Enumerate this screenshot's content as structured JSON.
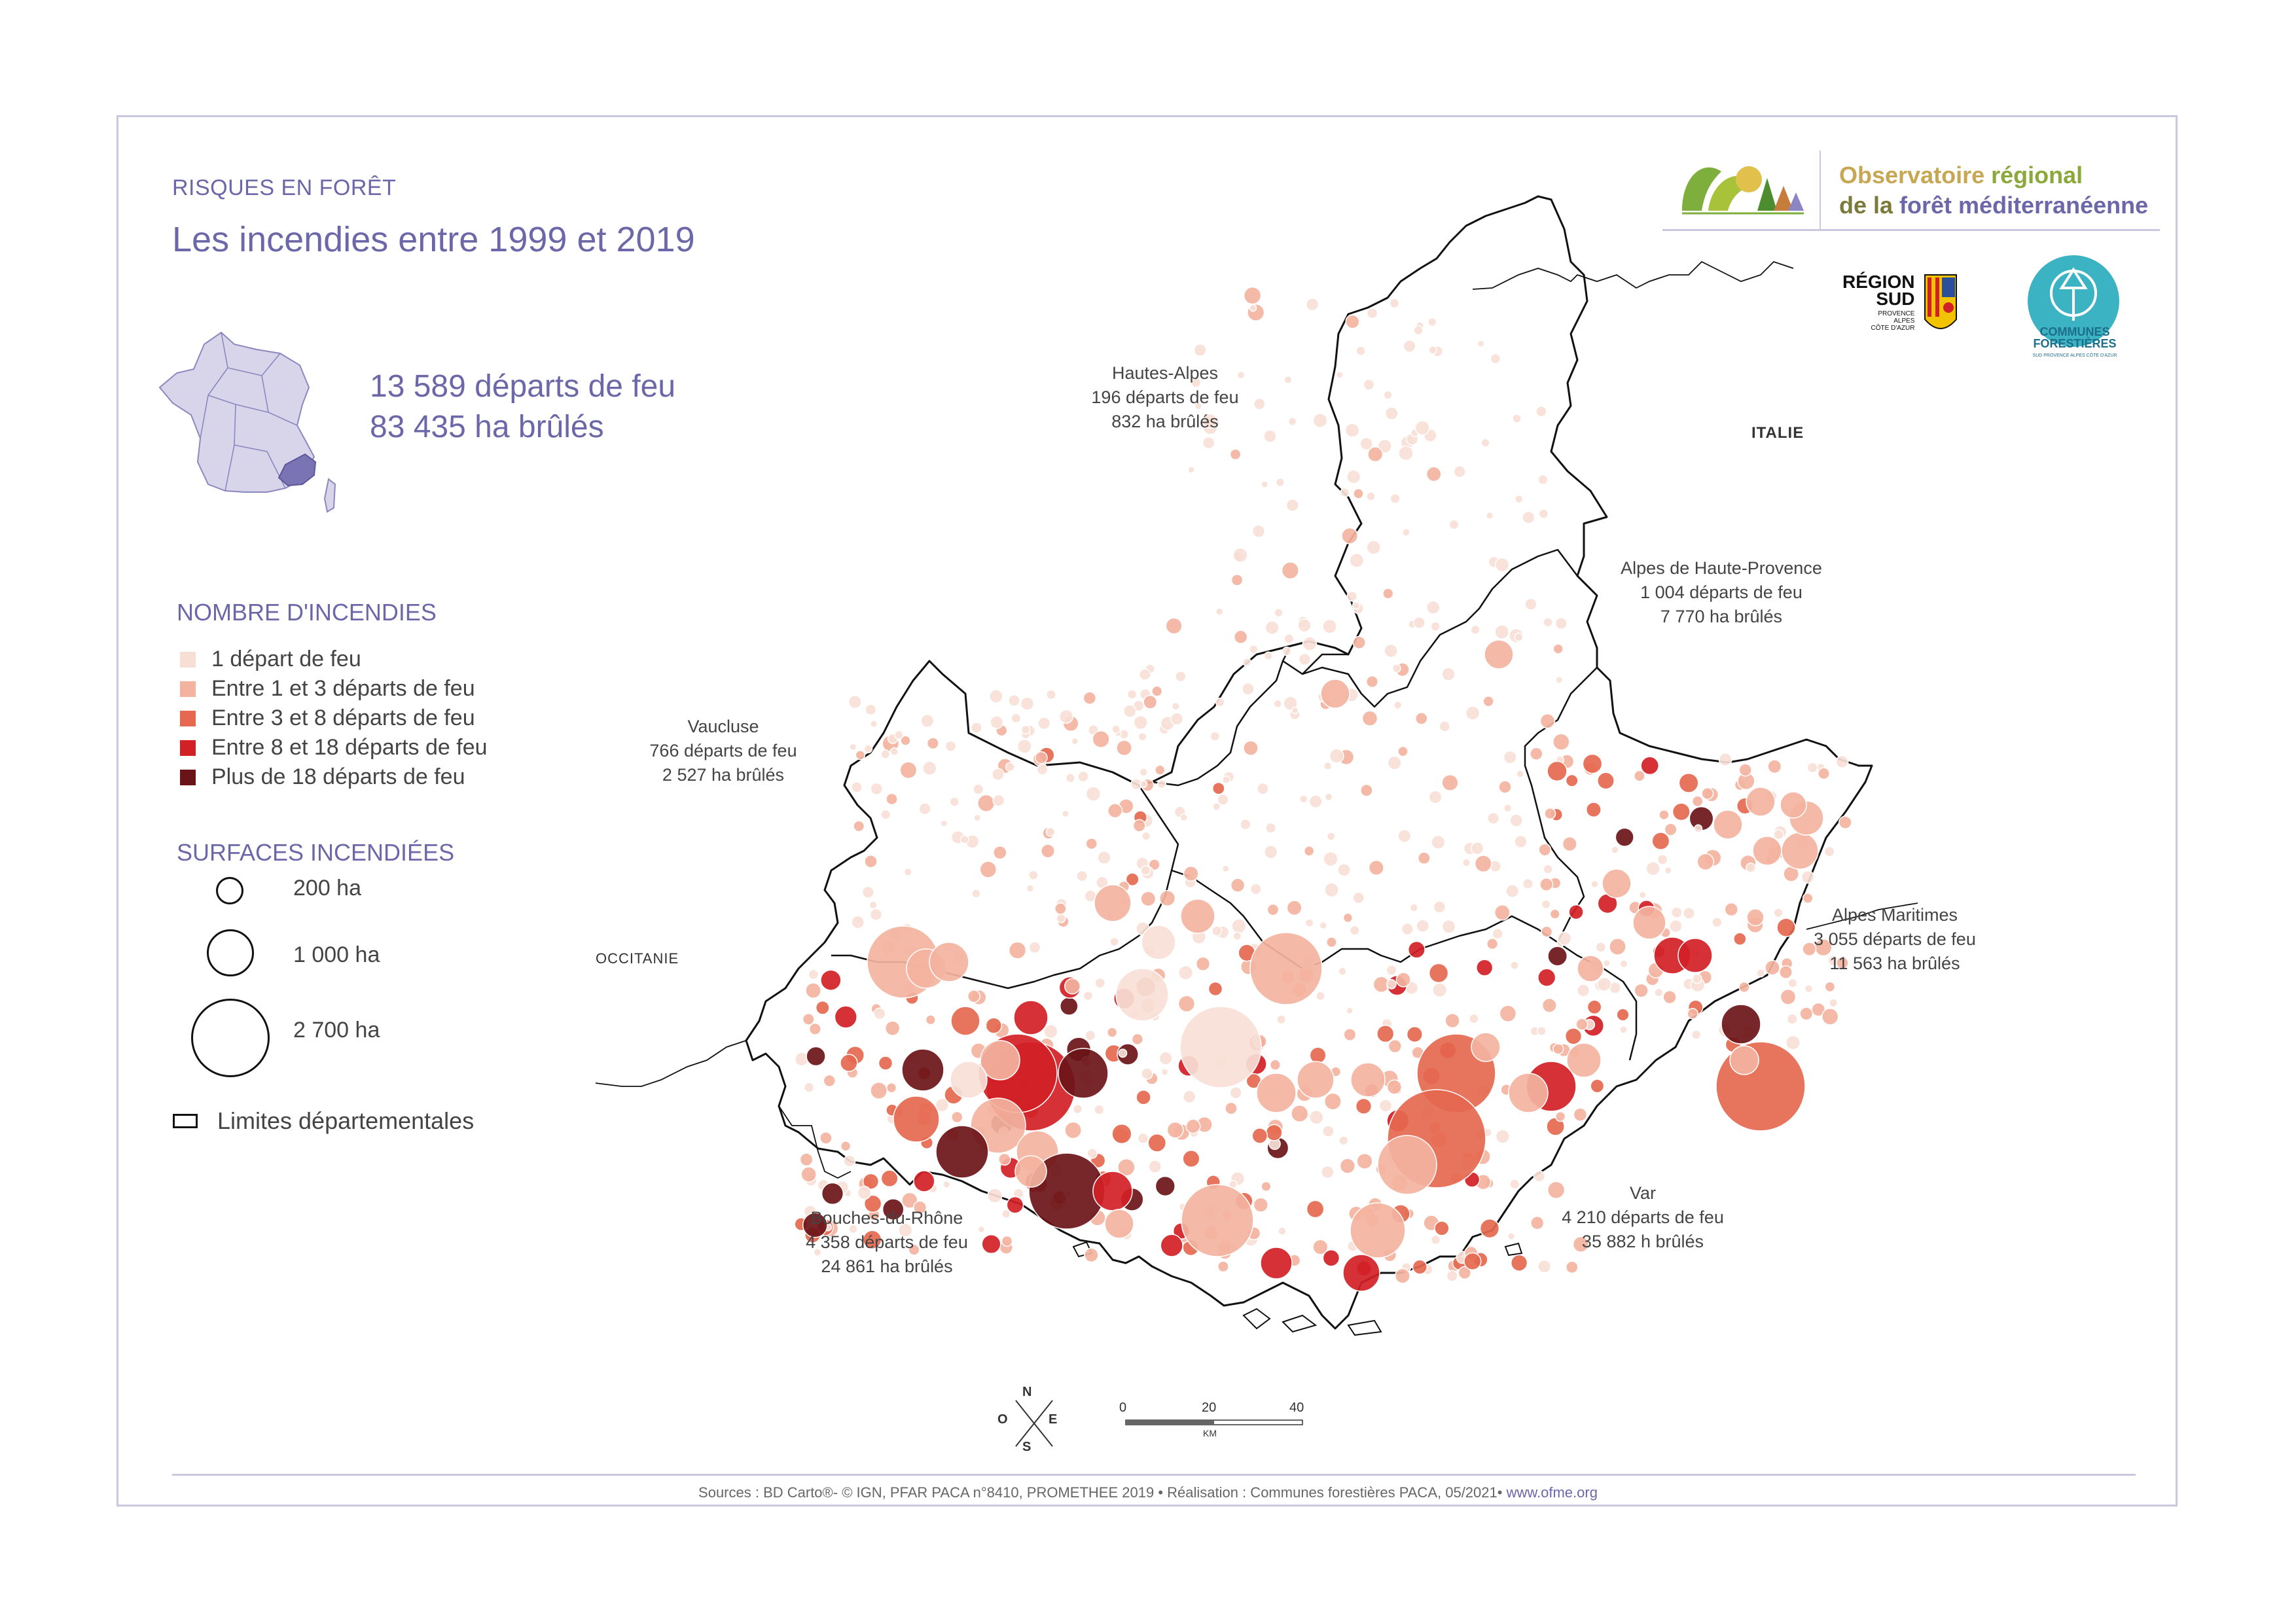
{
  "header": {
    "kicker": "RISQUES EN FORÊT",
    "title": "Les incendies entre 1999 et 2019"
  },
  "totals": {
    "departs": "13 589 départs de feu",
    "hectares": "83 435 ha brûlés"
  },
  "legend": {
    "count_title": "NOMBRE D'INCENDIES",
    "count_items": [
      {
        "label": "1 départ de feu",
        "color": "#f7dfd6"
      },
      {
        "label": "Entre 1 et 3 départs de feu",
        "color": "#f3b39f"
      },
      {
        "label": "Entre 3 et 8 départs de feu",
        "color": "#e5684f"
      },
      {
        "label": "Entre 8 et 18 départs de feu",
        "color": "#d12026"
      },
      {
        "label": "Plus de 18 départs de feu",
        "color": "#6b1418"
      }
    ],
    "size_title": "SURFACES INCENDIÉES",
    "size_items": [
      {
        "label": "200 ha"
      },
      {
        "label": "1 000 ha"
      },
      {
        "label": "2 700 ha"
      }
    ],
    "limits_label": "Limites départementales"
  },
  "logos": {
    "obs_line1_a": "Observatoire ",
    "obs_line1_b": "régional",
    "obs_line2_a": "de la ",
    "obs_line2_b": "forêt méditerranéenne",
    "region_title_1": "RÉGION",
    "region_title_2": "SUD",
    "region_sub_1": "PROVENCE",
    "region_sub_2": "ALPES",
    "region_sub_3": "CÔTE D'AZUR",
    "communes_1": "COMMUNES",
    "communes_2": "FORESTIÈRES",
    "communes_sub": "SUD PROVENCE ALPES CÔTE D'AZUR"
  },
  "map": {
    "departments": [
      {
        "name": "Hautes-Alpes",
        "departs": "196 départs de feu",
        "ha": "832 ha brûlés"
      },
      {
        "name": "Alpes de Haute-Provence",
        "departs": "1 004 départs de feu",
        "ha": "7 770 ha brûlés"
      },
      {
        "name": "Vaucluse",
        "departs": "766 départs de feu",
        "ha": "2 527 ha brûlés"
      },
      {
        "name": "Alpes Maritimes",
        "departs": "3 055 départs de feu",
        "ha": "11 563 ha brûlés"
      },
      {
        "name": "Var",
        "departs": "4 210 départs de feu",
        "ha": "35 882 h brûlés"
      },
      {
        "name": "Bouches-du-Rhône",
        "departs": "4 358 départs de feu",
        "ha": "24 861 ha brûlés"
      }
    ],
    "countries": {
      "italie": "ITALIE",
      "occitanie": "OCCITANIE"
    }
  },
  "compass": {
    "n": "N",
    "s": "S",
    "e": "E",
    "o": "O"
  },
  "scale": {
    "t0": "0",
    "t20": "20",
    "t40": "40",
    "unit": "KM"
  },
  "footer": {
    "sources": "Sources : BD Carto®- © IGN, PFAR PACA n°8410, PROMETHEE 2019 • Réalisation : Communes forestières PACA, 05/2021• ",
    "link": "www.ofme.org"
  }
}
